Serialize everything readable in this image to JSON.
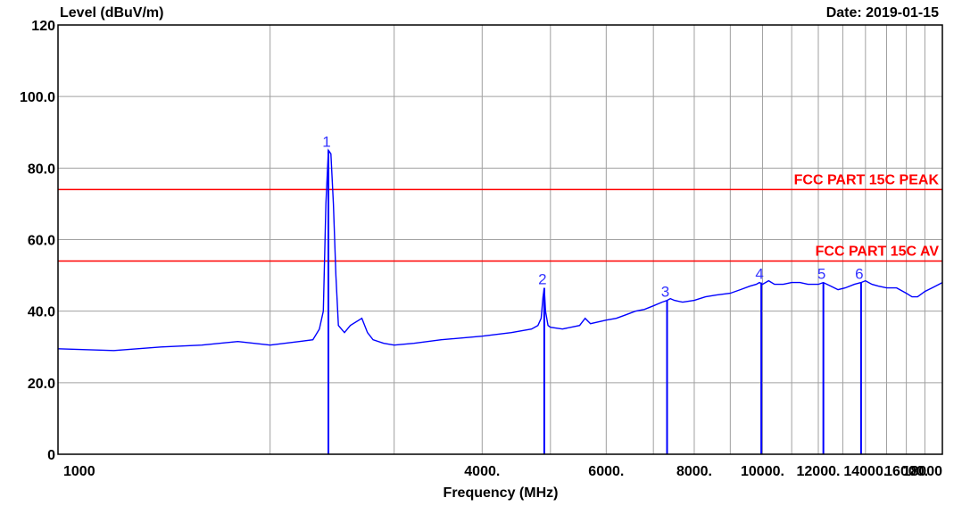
{
  "chart_data": {
    "type": "line",
    "title": "",
    "ylabel": "Level (dBuV/m)",
    "xlabel": "Frequency (MHz)",
    "date": "Date: 2019-01-15",
    "x_range": [
      1000,
      18000
    ],
    "ylim": [
      0,
      120
    ],
    "x_scale": "log",
    "grid": true,
    "y_ticks": [
      {
        "value": 0,
        "label": "0"
      },
      {
        "value": 20,
        "label": "20.0"
      },
      {
        "value": 40,
        "label": "40.0"
      },
      {
        "value": 60,
        "label": "60.0"
      },
      {
        "value": 80,
        "label": "80.0"
      },
      {
        "value": 100,
        "label": "100.0"
      },
      {
        "value": 120,
        "label": "120"
      }
    ],
    "x_ticks": [
      {
        "value": 1000,
        "label": "1000"
      },
      {
        "value": 4000,
        "label": "4000."
      },
      {
        "value": 6000,
        "label": "6000."
      },
      {
        "value": 8000,
        "label": "8000."
      },
      {
        "value": 10000,
        "label": "10000."
      },
      {
        "value": 12000,
        "label": "12000."
      },
      {
        "value": 14000,
        "label": "14000."
      },
      {
        "value": 16000,
        "label": "16000."
      },
      {
        "value": 18000,
        "label": "18000"
      }
    ],
    "x_gridlines": [
      1000,
      2000,
      3000,
      4000,
      5000,
      6000,
      7000,
      8000,
      9000,
      10000,
      11000,
      12000,
      13000,
      14000,
      15000,
      16000,
      17000,
      18000
    ],
    "limits": [
      {
        "label": "FCC PART 15C PEAK",
        "value": 74,
        "color": "#ff0000"
      },
      {
        "label": "FCC PART 15C  AV",
        "value": 54,
        "color": "#ff0000"
      }
    ],
    "series": [
      {
        "color": "#0000ff",
        "x": [
          1000,
          1200,
          1400,
          1600,
          1800,
          2000,
          2200,
          2300,
          2350,
          2380,
          2400,
          2420,
          2440,
          2460,
          2480,
          2500,
          2550,
          2600,
          2700,
          2750,
          2800,
          2900,
          3000,
          3200,
          3500,
          4000,
          4400,
          4700,
          4800,
          4850,
          4880,
          4900,
          4920,
          4960,
          5000,
          5200,
          5500,
          5600,
          5700,
          6000,
          6200,
          6400,
          6600,
          6800,
          7000,
          7200,
          7320,
          7400,
          7500,
          7700,
          8000,
          8300,
          8600,
          9000,
          9300,
          9600,
          9800,
          9900,
          10000,
          10200,
          10400,
          10700,
          11000,
          11300,
          11600,
          12000,
          12200,
          12500,
          12800,
          13100,
          13500,
          13800,
          14000,
          14300,
          14600,
          15000,
          15500,
          16000,
          16300,
          16600,
          17000,
          17400,
          17800,
          18000
        ],
        "y": [
          29.5,
          29.0,
          30.0,
          30.5,
          31.5,
          30.5,
          31.5,
          32.0,
          35.0,
          40.0,
          70.0,
          85.0,
          84.0,
          70.0,
          50.0,
          36.0,
          34.0,
          36.0,
          38.0,
          34.0,
          32.0,
          31.0,
          30.5,
          31.0,
          32.0,
          33.0,
          34.0,
          35.0,
          36.0,
          38.0,
          44.0,
          46.5,
          40.0,
          36.0,
          35.5,
          35.0,
          36.0,
          38.0,
          36.5,
          37.5,
          38.0,
          39.0,
          40.0,
          40.5,
          41.5,
          42.5,
          43.0,
          43.5,
          43.0,
          42.5,
          43.0,
          44.0,
          44.5,
          45.0,
          46.0,
          47.0,
          47.5,
          48.0,
          47.5,
          48.5,
          47.5,
          47.5,
          48.0,
          48.0,
          47.5,
          47.5,
          48.0,
          47.0,
          46.0,
          46.5,
          47.5,
          48.0,
          48.5,
          47.5,
          47.0,
          46.5,
          46.5,
          45.0,
          44.0,
          44.0,
          45.5,
          46.5,
          47.5,
          48.0
        ]
      }
    ],
    "markers": [
      {
        "label": "1",
        "x": 2420,
        "y": 85.0
      },
      {
        "label": "2",
        "x": 4900,
        "y": 46.5
      },
      {
        "label": "3",
        "x": 7320,
        "y": 43.0
      },
      {
        "label": "4",
        "x": 9960,
        "y": 48.0
      },
      {
        "label": "5",
        "x": 12200,
        "y": 48.0
      },
      {
        "label": "6",
        "x": 13800,
        "y": 48.0
      }
    ]
  }
}
